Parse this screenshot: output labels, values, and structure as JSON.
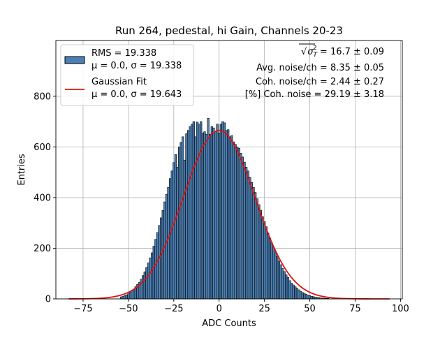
{
  "chart_data": {
    "type": "bar",
    "title": "Run 264, pedestal, hi Gain, Channels 20-23",
    "xlabel": "ADC Counts",
    "ylabel": "Entries",
    "xlim": [
      -90,
      101
    ],
    "ylim": [
      0,
      1020
    ],
    "grid": true,
    "xticks": [
      -75,
      -50,
      -25,
      0,
      25,
      50,
      75,
      100
    ],
    "yticks": [
      0,
      200,
      400,
      600,
      800
    ],
    "xtick_labels": [
      "−75",
      "−50",
      "−25",
      "0",
      "25",
      "50",
      "75",
      "100"
    ],
    "ytick_labels": [
      "0",
      "200",
      "400",
      "600",
      "800"
    ],
    "bin_width": 1,
    "histogram": {
      "x": [
        -54,
        -53,
        -52,
        -51,
        -50,
        -49,
        -48,
        -47,
        -46,
        -45,
        -44,
        -43,
        -42,
        -41,
        -40,
        -39,
        -38,
        -37,
        -36,
        -35,
        -34,
        -33,
        -32,
        -31,
        -30,
        -29,
        -28,
        -27,
        -26,
        -25,
        -24,
        -23,
        -22,
        -21,
        -20,
        -19,
        -18,
        -17,
        -16,
        -15,
        -14,
        -13,
        -12,
        -11,
        -10,
        -9,
        -8,
        -7,
        -6,
        -5,
        -4,
        -3,
        -2,
        -1,
        0,
        1,
        2,
        3,
        4,
        5,
        6,
        7,
        8,
        9,
        10,
        11,
        12,
        13,
        14,
        15,
        16,
        17,
        18,
        19,
        20,
        21,
        22,
        23,
        24,
        25,
        26,
        27,
        28,
        29,
        30,
        31,
        32,
        33,
        34,
        35,
        36,
        37,
        38,
        39,
        40,
        41,
        42,
        43,
        44,
        45,
        46,
        47,
        48,
        49,
        50,
        51,
        52,
        53,
        54,
        55,
        56,
        57,
        58,
        59,
        60
      ],
      "values": [
        8,
        10,
        13,
        16,
        20,
        26,
        32,
        38,
        48,
        57,
        65,
        78,
        92,
        107,
        124,
        142,
        162,
        182,
        208,
        235,
        262,
        290,
        320,
        349,
        383,
        413,
        440,
        475,
        505,
        538,
        570,
        520,
        600,
        618,
        640,
        548,
        652,
        665,
        680,
        690,
        700,
        640,
        698,
        690,
        700,
        655,
        660,
        650,
        713,
        650,
        680,
        675,
        660,
        690,
        655,
        690,
        700,
        695,
        665,
        668,
        640,
        645,
        620,
        610,
        600,
        595,
        575,
        560,
        540,
        520,
        505,
        480,
        460,
        440,
        420,
        395,
        372,
        350,
        325,
        305,
        285,
        260,
        240,
        220,
        205,
        185,
        168,
        150,
        135,
        120,
        108,
        95,
        85,
        72,
        62,
        55,
        48,
        42,
        36,
        30,
        25,
        22,
        18,
        15,
        13,
        10,
        9,
        7,
        6,
        5,
        4,
        3,
        3,
        2,
        2
      ]
    },
    "series": [
      {
        "name": "RMS = 19.338",
        "detail": "μ = 0.0, σ = 19.338",
        "kind": "histogram",
        "fill_color": "#4c80b4",
        "edge_color": "#000000"
      },
      {
        "name": "Gaussian Fit",
        "detail": "μ = 0.0, σ = 19.643",
        "kind": "line",
        "color": "#dd1111",
        "mu": 0.0,
        "sigma": 19.643,
        "amplitude": 665,
        "x_range": [
          -83,
          94
        ]
      }
    ],
    "legend": {
      "placement": "top-left",
      "entries": [
        {
          "line1": "RMS = 19.338",
          "line2": "μ = 0.0, σ = 19.338"
        },
        {
          "line1": "Gaussian Fit",
          "line2": "μ = 0.0, σ = 19.643"
        }
      ]
    },
    "annotations": [
      {
        "prefix": "√",
        "symbol": "σ",
        "sub": "T",
        "sup": "2",
        "suffix": " = 16.7 ± 0.09"
      },
      {
        "text": "Avg. noise/ch = 8.35 ± 0.05"
      },
      {
        "text": "Coh. noise/ch = 2.44 ± 0.27"
      },
      {
        "text": "[%] Coh. noise = 29.19 ± 3.18"
      }
    ]
  }
}
